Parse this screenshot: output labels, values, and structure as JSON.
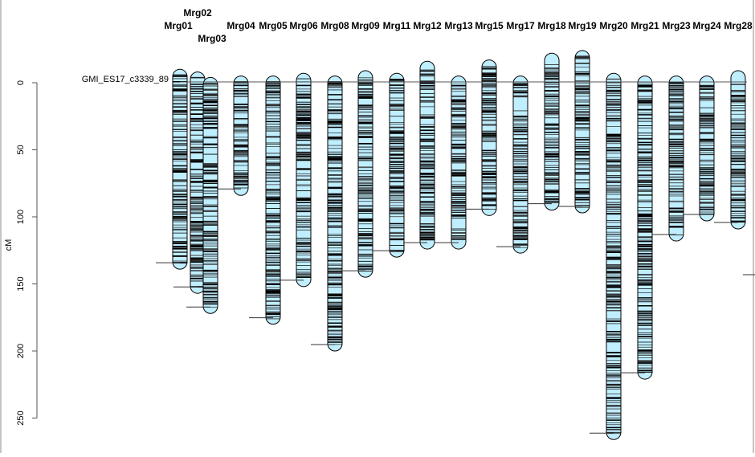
{
  "chart_data": {
    "type": "linkage-map",
    "ylabel": "cM",
    "ylim": [
      -25,
      270
    ],
    "y_reversed": true,
    "yticks": [
      0,
      50,
      100,
      150,
      200,
      250
    ],
    "fill_color": "#bfeeff",
    "marker_color": "#000000",
    "annotation": "GMI_ES17_c3339_89",
    "chromosomes": [
      {
        "name": "Mrg01",
        "start": -10,
        "end": 139
      },
      {
        "name": "Mrg02",
        "start": -8,
        "end": 157
      },
      {
        "name": "Mrg03",
        "start": -4,
        "end": 172
      },
      {
        "name": "Mrg04",
        "start": -5,
        "end": 84
      },
      {
        "name": "Mrg05",
        "start": -5,
        "end": 180
      },
      {
        "name": "Mrg06",
        "start": -7,
        "end": 152
      },
      {
        "name": "Mrg08",
        "start": -5,
        "end": 200
      },
      {
        "name": "Mrg09",
        "start": -9,
        "end": 145
      },
      {
        "name": "Mrg11",
        "start": -7,
        "end": 130
      },
      {
        "name": "Mrg12",
        "start": -16,
        "end": 124
      },
      {
        "name": "Mrg13",
        "start": -5,
        "end": 124
      },
      {
        "name": "Mrg15",
        "start": -17,
        "end": 99
      },
      {
        "name": "Mrg17",
        "start": -5,
        "end": 127
      },
      {
        "name": "Mrg18",
        "start": -22,
        "end": 95
      },
      {
        "name": "Mrg19",
        "start": -24,
        "end": 97
      },
      {
        "name": "Mrg20",
        "start": -7,
        "end": 266
      },
      {
        "name": "Mrg21",
        "start": -5,
        "end": 221
      },
      {
        "name": "Mrg23",
        "start": -5,
        "end": 118
      },
      {
        "name": "Mrg24",
        "start": -5,
        "end": 103
      },
      {
        "name": "Mrg28",
        "start": -9,
        "end": 109
      }
    ]
  }
}
